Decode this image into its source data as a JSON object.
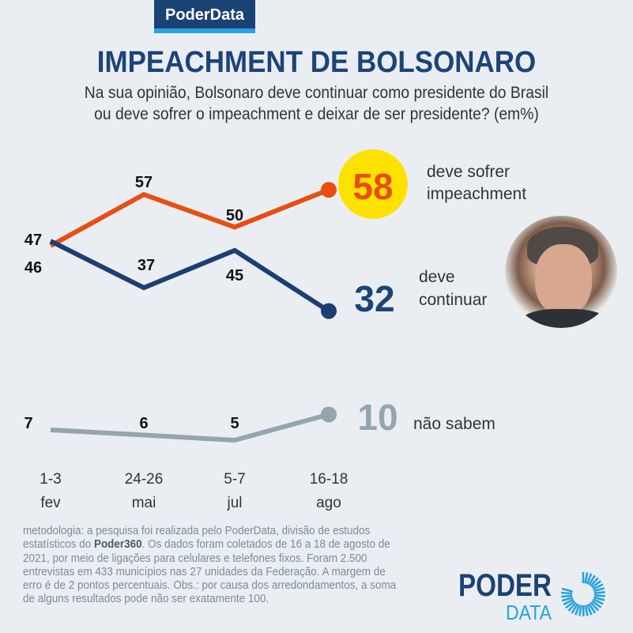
{
  "brand": "PoderData",
  "title": "IMPEACHMENT DE BOLSONARO",
  "subtitle_line1": "Na sua opinião, Bolsonaro deve continuar como presidente do Brasil",
  "subtitle_line2": "ou deve sofrer o impeachment e deixar de ser presidente? (em%)",
  "chart_data": {
    "type": "line",
    "title": "IMPEACHMENT DE BOLSONARO",
    "categories": [
      "1-3 fev",
      "24-26 mai",
      "5-7 jul",
      "16-18 ago"
    ],
    "tick_top": [
      "1-3",
      "24-26",
      "5-7",
      "16-18"
    ],
    "tick_bottom": [
      "fev",
      "mai",
      "jul",
      "ago"
    ],
    "ylabel": "%",
    "series": [
      {
        "name": "deve sofrer impeachment",
        "legend_line1": "deve sofrer",
        "legend_line2": "impeachment",
        "color": "#e84e12",
        "values": [
          46,
          57,
          50,
          58
        ],
        "labels": [
          "46",
          "57",
          "50",
          "58"
        ]
      },
      {
        "name": "deve continuar",
        "legend_line1": "deve",
        "legend_line2": "continuar",
        "color": "#1b3f73",
        "values": [
          47,
          37,
          45,
          32
        ],
        "labels": [
          "47",
          "37",
          "45",
          "32"
        ]
      },
      {
        "name": "não sabem",
        "legend_line1": "não sabem",
        "color": "#94a5ae",
        "values": [
          7,
          6,
          5,
          10
        ],
        "labels": [
          "7",
          "6",
          "5",
          "10"
        ]
      }
    ]
  },
  "methodology": {
    "before": "metodologia: a pesquisa foi realizada pelo PoderData, divisão de estudos estatísticos do ",
    "bold": "Poder360",
    "after": ". Os dados foram coletados de 16 a 18 de agosto de 2021, por meio de ligações para celulares e telefones fixos. Foram 2.500 entrevistas em 433 municípios nas 27 unidades da Federação. A margem de erro é de 2 pontos percentuais. Obs.: por causa dos arredondamentos, a soma de alguns resultados pode não ser exatamente 100."
  },
  "logo": {
    "line1": "PODER",
    "line2": "DATA"
  },
  "colors": {
    "accent_yellow": "#ffe100",
    "navy": "#1b4275",
    "cyan": "#27a3dd"
  }
}
